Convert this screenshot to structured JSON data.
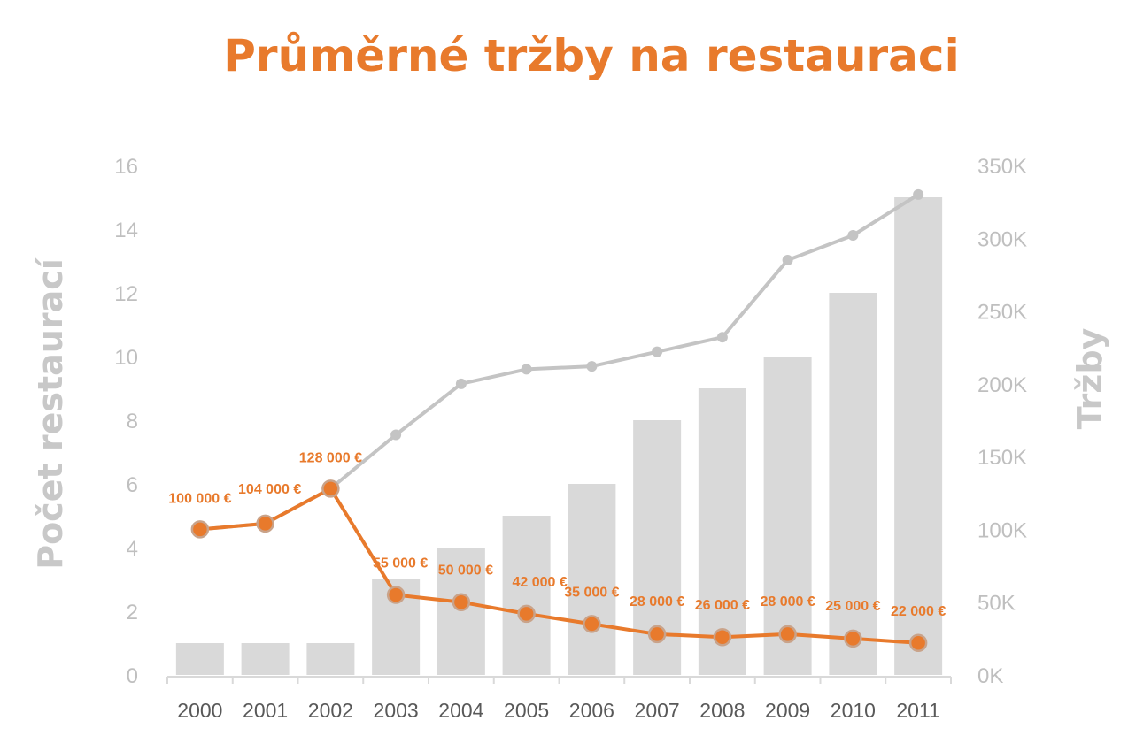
{
  "colors": {
    "accent": "#e87a2c",
    "bar": "#d9d9d9",
    "line_gray": "#c4c4c4",
    "axis_text": "#bfbfbf",
    "axis_title": "#c8c8c8",
    "x_text": "#595959",
    "axis_line": "#d9d9d9",
    "marker_stroke": "#c9a38a"
  },
  "chart_data": {
    "type": "bar+line",
    "title": "Průměrné tržby na restauraci",
    "categories": [
      "2000",
      "2001",
      "2002",
      "2003",
      "2004",
      "2005",
      "2006",
      "2007",
      "2008",
      "2009",
      "2010",
      "2011"
    ],
    "y_left": {
      "label": "Počet restaurací",
      "range": [
        0,
        16
      ],
      "ticks": [
        0,
        2,
        4,
        6,
        8,
        10,
        12,
        14,
        16
      ]
    },
    "y_right": {
      "label": "Tržby",
      "range": [
        0,
        350000
      ],
      "ticks": [
        0,
        50000,
        100000,
        150000,
        200000,
        250000,
        300000,
        350000
      ],
      "tick_labels": [
        "0K",
        "50K",
        "100K",
        "150K",
        "200K",
        "250K",
        "300K",
        "350K"
      ]
    },
    "bars": {
      "axis": "left",
      "values": [
        1,
        1,
        1,
        3,
        4,
        5,
        6,
        8,
        9,
        10,
        12,
        15
      ]
    },
    "line_total": {
      "axis": "right",
      "values": [
        100000,
        104000,
        128000,
        165000,
        200000,
        210000,
        212000,
        222000,
        232000,
        285000,
        302000,
        330000
      ]
    },
    "line_average": {
      "axis": "right",
      "values": [
        100000,
        104000,
        128000,
        55000,
        50000,
        42000,
        35000,
        28000,
        26000,
        28000,
        25000,
        22000
      ],
      "labels": [
        "100 000 €",
        "104 000 €",
        "128 000 €",
        "55 000 €",
        "50 000 €",
        "42 000 €",
        "35 000 €",
        "28 000 €",
        "26 000 €",
        "28 000 €",
        "25 000 €",
        "22 000 €"
      ]
    },
    "grid": false,
    "legend": "none"
  }
}
